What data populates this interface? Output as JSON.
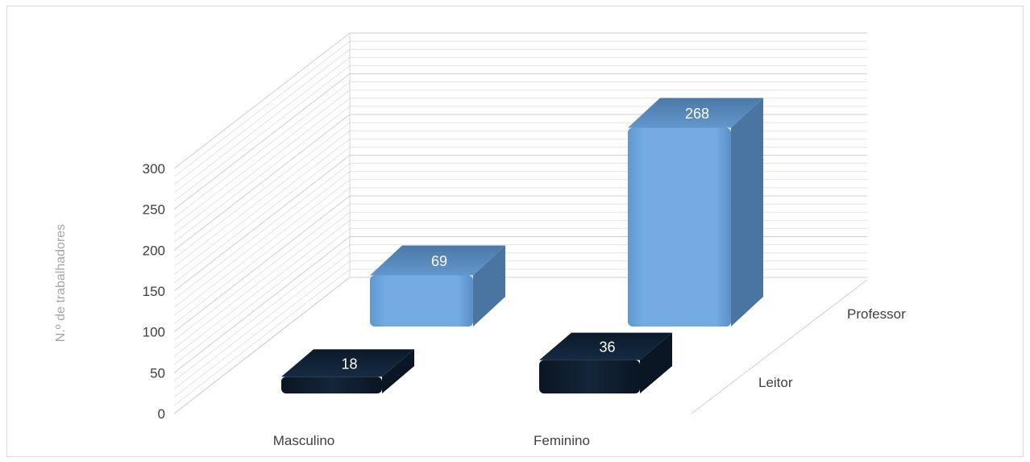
{
  "chart_data": {
    "type": "bar",
    "title": "",
    "ylabel": "N.º de trabalhadores",
    "xlabel": "",
    "ylim": [
      0,
      300
    ],
    "yticks": [
      0,
      50,
      100,
      150,
      200,
      250,
      300
    ],
    "categories": [
      "Masculino",
      "Feminino"
    ],
    "series": [
      {
        "name": "Leitor",
        "values": [
          18,
          36
        ],
        "color": "#0d1b2a"
      },
      {
        "name": "Professor",
        "values": [
          69,
          268
        ],
        "color": "#6fa8e0"
      }
    ],
    "grid": true,
    "legend": "depth-axis"
  }
}
